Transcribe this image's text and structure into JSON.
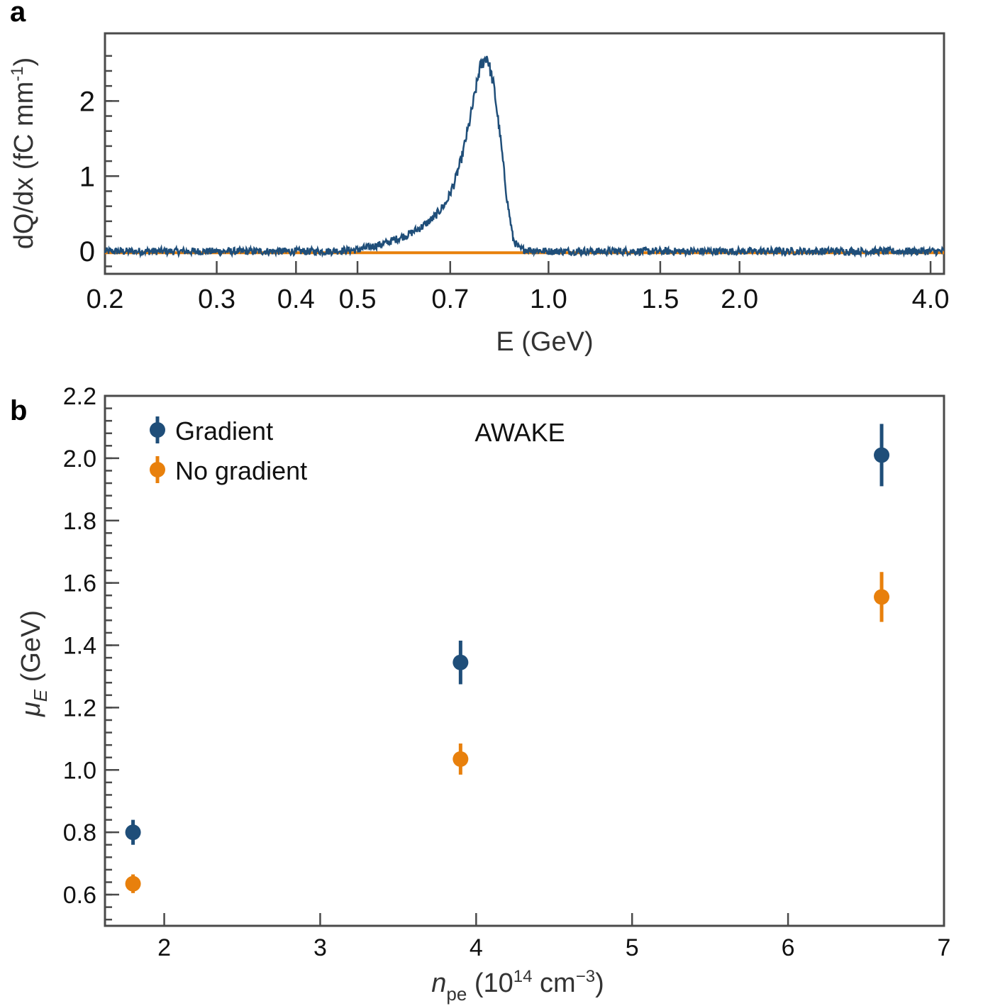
{
  "colors": {
    "gradient": "#1f4e79",
    "no_gradient": "#e8800c",
    "axis": "#4a4a4a"
  },
  "chart_data": [
    {
      "panel": "a",
      "type": "line",
      "xscale": "log",
      "xlim": [
        0.2,
        4.2
      ],
      "ylim": [
        -0.3,
        2.9
      ],
      "xlabel": "E (GeV)",
      "ylabel_parts": {
        "main": "dQ/dx (fC mm",
        "sup": "-1",
        "close": ")"
      },
      "xticks": [
        0.2,
        0.3,
        0.4,
        0.5,
        0.7,
        1.0,
        1.5,
        2.0,
        4.0
      ],
      "xtick_labels": [
        "0.2",
        "0.3",
        "0.4",
        "0.5",
        "0.7",
        "1.0",
        "1.5",
        "2.0",
        "4.0"
      ],
      "yticks": [
        0,
        1,
        2
      ],
      "ytick_labels": [
        "0",
        "1",
        "2"
      ],
      "series": [
        {
          "color": "#1f4e79",
          "noise": 0.05,
          "x": [
            0.2,
            0.45,
            0.5,
            0.55,
            0.6,
            0.63,
            0.66,
            0.69,
            0.71,
            0.73,
            0.75,
            0.77,
            0.78,
            0.8,
            0.82,
            0.84,
            0.86,
            0.88,
            0.9,
            1.0,
            4.2
          ],
          "y": [
            0.0,
            0.0,
            0.02,
            0.1,
            0.22,
            0.32,
            0.45,
            0.65,
            0.9,
            1.25,
            1.7,
            2.2,
            2.45,
            2.6,
            2.2,
            1.5,
            0.7,
            0.15,
            0.03,
            0.0,
            0.0
          ]
        },
        {
          "color": "#e8800c",
          "noise": 0,
          "x": [
            0.2,
            4.2
          ],
          "y": [
            -0.02,
            -0.02
          ]
        }
      ]
    },
    {
      "panel": "b",
      "type": "scatter",
      "xlim": [
        1.62,
        7.0
      ],
      "ylim": [
        0.5,
        2.2
      ],
      "xlabel_parts": {
        "n": "n",
        "sub": "pe",
        "open": " (10",
        "sup1": "14",
        "mid": " cm",
        "sup2": "−3",
        "close": ")"
      },
      "ylabel_parts": {
        "mu": "μ",
        "sub": "E",
        "rest": " (GeV)"
      },
      "annotation": "AWAKE",
      "legend_position": "top-left",
      "xticks": [
        2,
        3,
        4,
        5,
        6,
        7
      ],
      "xtick_labels": [
        "2",
        "3",
        "4",
        "5",
        "6",
        "7"
      ],
      "yticks": [
        0.6,
        0.8,
        1.0,
        1.2,
        1.4,
        1.6,
        1.8,
        2.0,
        2.2
      ],
      "ytick_labels": [
        "0.6",
        "0.8",
        "1.0",
        "1.2",
        "1.4",
        "1.6",
        "1.8",
        "2.0",
        "2.2"
      ],
      "series": [
        {
          "name": "Gradient",
          "color": "#1f4e79",
          "x": [
            1.8,
            3.9,
            6.6
          ],
          "y": [
            0.8,
            1.345,
            2.01
          ],
          "yerr": [
            0.04,
            0.07,
            0.1
          ]
        },
        {
          "name": "No gradient",
          "color": "#e8800c",
          "x": [
            1.8,
            3.9,
            6.6
          ],
          "y": [
            0.635,
            1.035,
            1.555
          ],
          "yerr": [
            0.03,
            0.05,
            0.08
          ]
        }
      ]
    }
  ]
}
